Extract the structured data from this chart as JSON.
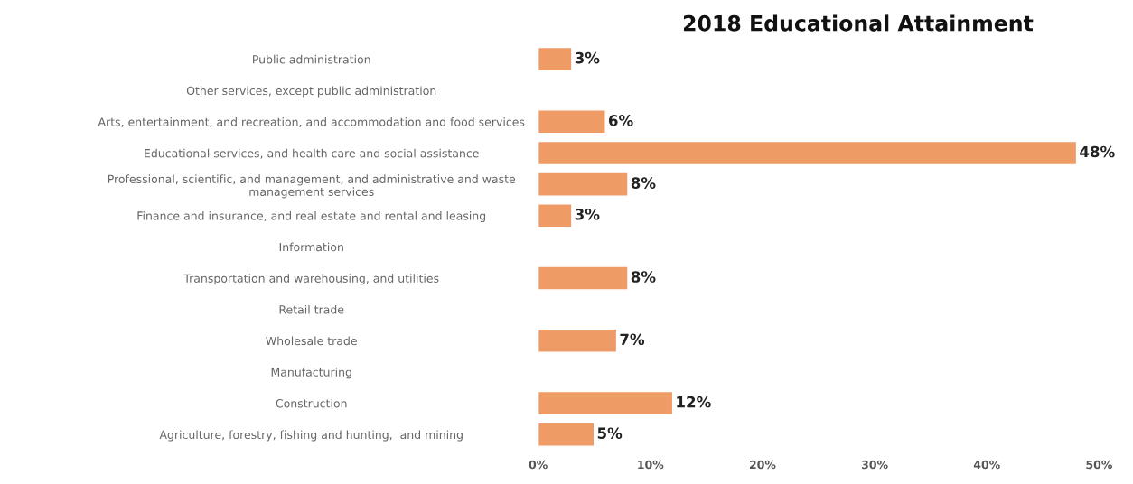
{
  "chart_data": {
    "type": "bar",
    "orientation": "horizontal",
    "title": "2018 Educational Attainment",
    "categories": [
      "Public administration",
      "Other services, except public administration",
      "Arts, entertainment, and recreation, and accommodation and food services",
      "Educational services, and health care and social assistance",
      "Professional, scientific, and management, and administrative and waste\nmanagement services",
      "Finance and insurance, and real estate and rental and leasing",
      "Information",
      "Transportation and warehousing, and utilities",
      "Retail trade",
      "Wholesale trade",
      "Manufacturing",
      "Construction",
      "Agriculture, forestry, fishing and hunting,  and mining"
    ],
    "values": [
      3,
      null,
      6,
      48,
      8,
      3,
      null,
      8,
      null,
      7,
      null,
      12,
      5
    ],
    "color": "#ef9b66",
    "xlim": [
      0,
      50
    ],
    "xticks": [
      {
        "value": 0,
        "label": "0%"
      },
      {
        "value": 10,
        "label": "10%"
      },
      {
        "value": 20,
        "label": "20%"
      },
      {
        "value": 30,
        "label": "30%"
      },
      {
        "value": 40,
        "label": "40%"
      },
      {
        "value": 50,
        "label": "50%"
      }
    ],
    "value_labels": [
      "3%",
      null,
      "6%",
      "48%",
      "8%",
      "3%",
      null,
      "8%",
      null,
      "7%",
      null,
      "12%",
      "5%"
    ],
    "grid": false,
    "legend": false
  }
}
